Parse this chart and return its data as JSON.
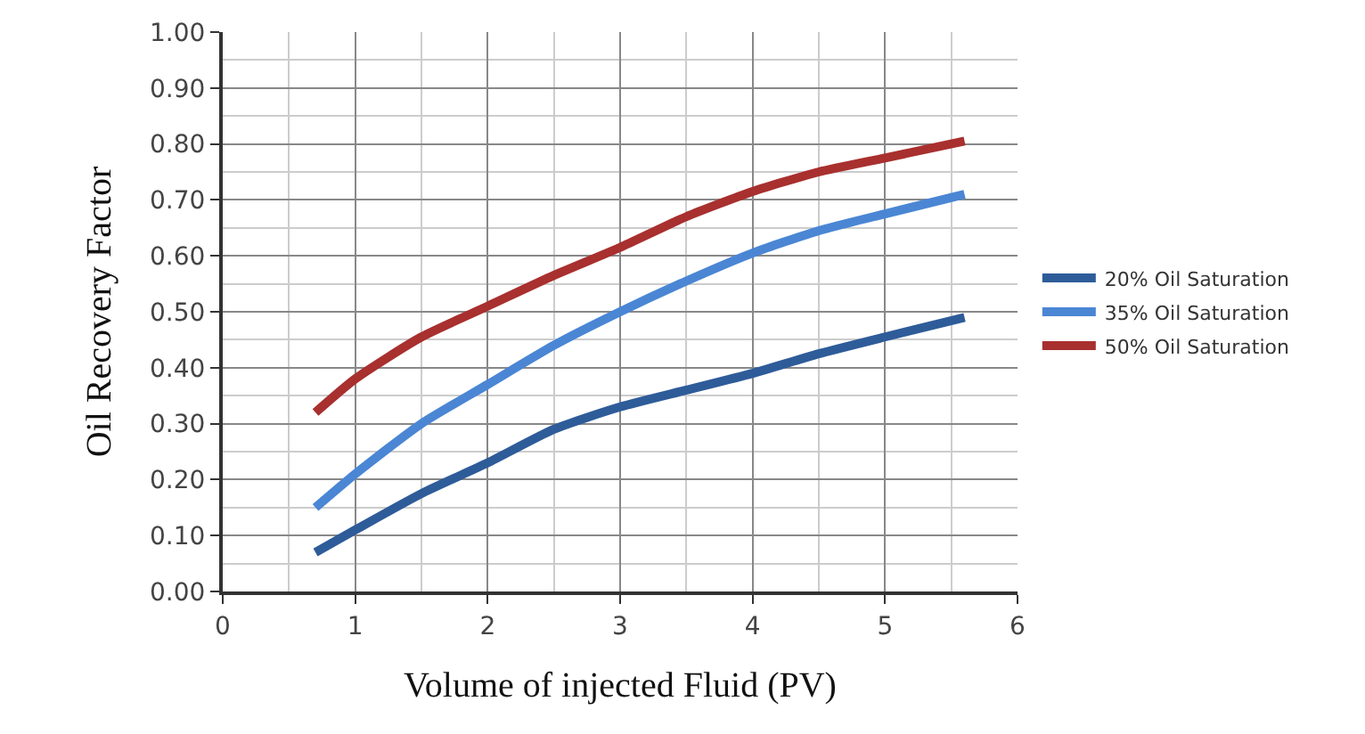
{
  "chart_data": {
    "type": "line",
    "xlabel": "Volume of injected Fluid (PV)",
    "ylabel": "Oil Recovery Factor",
    "x": [
      0.7,
      1,
      1.5,
      2,
      2.5,
      3,
      3.5,
      4,
      4.5,
      5,
      5.6
    ],
    "series": [
      {
        "name": "20% Oil Saturation",
        "color": "#2e5c99",
        "values": [
          0.07,
          0.11,
          0.175,
          0.23,
          0.29,
          0.33,
          0.36,
          0.39,
          0.425,
          0.455,
          0.49
        ]
      },
      {
        "name": "35% Oil Saturation",
        "color": "#4a86d4",
        "values": [
          0.15,
          0.21,
          0.3,
          0.37,
          0.44,
          0.5,
          0.555,
          0.605,
          0.645,
          0.675,
          0.71
        ]
      },
      {
        "name": "50% Oil Saturation",
        "color": "#a8302f",
        "values": [
          0.32,
          0.38,
          0.455,
          0.51,
          0.565,
          0.615,
          0.67,
          0.715,
          0.75,
          0.775,
          0.805
        ]
      }
    ],
    "xlim": [
      0,
      6
    ],
    "xticks": [
      0,
      1,
      2,
      3,
      4,
      5,
      6
    ],
    "ylim": [
      0,
      1
    ],
    "yticks": [
      {
        "value": 0,
        "label": "0.00"
      },
      {
        "value": 0.1,
        "label": "0.10"
      },
      {
        "value": 0.2,
        "label": "0.20"
      },
      {
        "value": 0.3,
        "label": "0.30"
      },
      {
        "value": 0.4,
        "label": "0.40"
      },
      {
        "value": 0.5,
        "label": "0.50"
      },
      {
        "value": 0.6,
        "label": "0.60"
      },
      {
        "value": 0.7,
        "label": "0.70"
      },
      {
        "value": 0.8,
        "label": "0.80"
      },
      {
        "value": 0.9,
        "label": "0.90"
      },
      {
        "value": 1,
        "label": "1.00"
      }
    ],
    "grid": true,
    "legend": "right",
    "marker": "none",
    "line_style": "solid"
  }
}
